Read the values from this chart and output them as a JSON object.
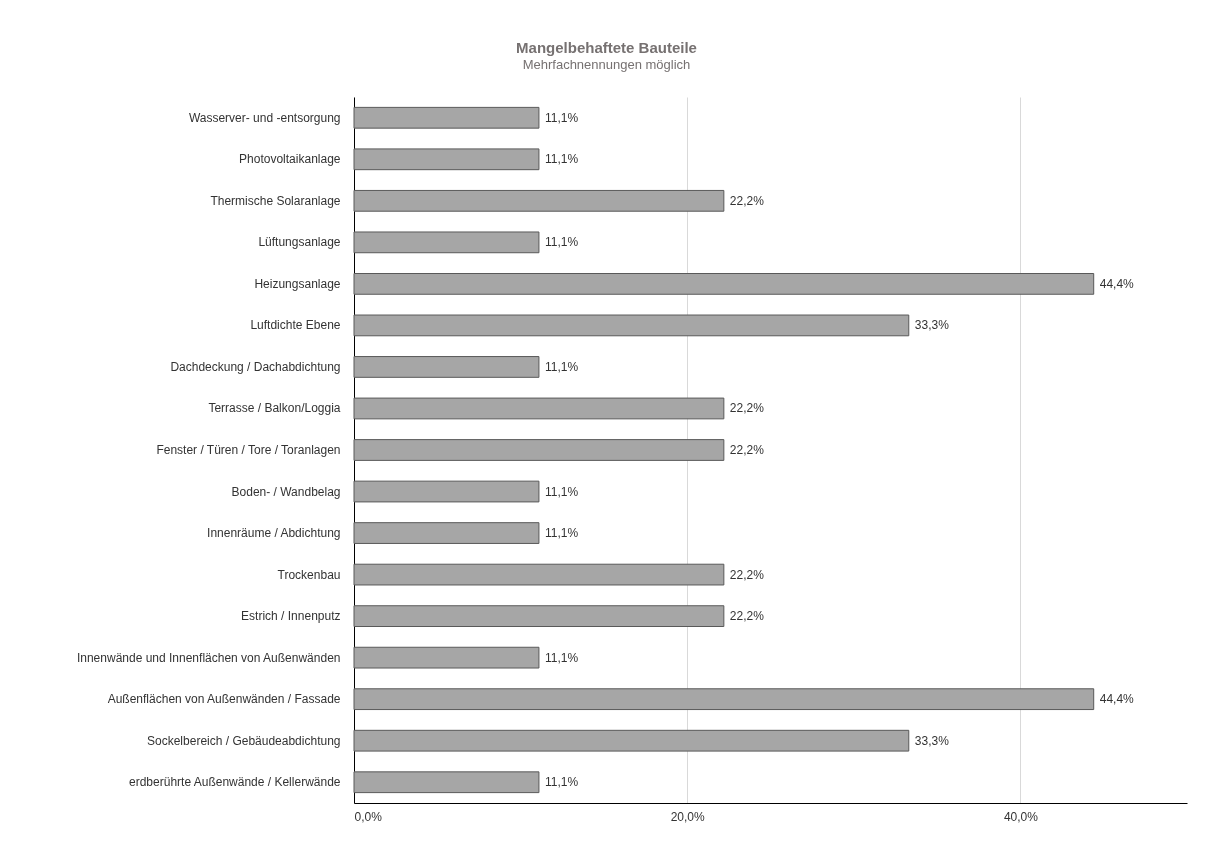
{
  "chart_data": {
    "type": "bar",
    "orientation": "horizontal",
    "title": "Mangelbehaftete Bauteile",
    "subtitle": "Mehrfachnennungen möglich",
    "categories": [
      "Wasserver- und -entsorgung",
      "Photovoltaikanlage",
      "Thermische Solaranlage",
      "Lüftungsanlage",
      "Heizungsanlage",
      "Luftdichte Ebene",
      "Dachdeckung / Dachabdichtung",
      "Terrasse / Balkon/Loggia",
      "Fenster / Türen / Tore / Toranlagen",
      "Boden- / Wandbelag",
      "Innenräume / Abdichtung",
      "Trockenbau",
      "Estrich / Innenputz",
      "Innenwände und Innenflächen von Außenwänden",
      "Außenflächen von Außenwänden / Fassade",
      "Sockelbereich / Gebäudeabdichtung",
      "erdberührte Außenwände / Kellerwände"
    ],
    "values": [
      11.1,
      11.1,
      22.2,
      11.1,
      44.4,
      33.3,
      11.1,
      22.2,
      22.2,
      11.1,
      11.1,
      22.2,
      22.2,
      11.1,
      44.4,
      33.3,
      11.1
    ],
    "value_labels": [
      "11,1%",
      "11,1%",
      "22,2%",
      "11,1%",
      "44,4%",
      "33,3%",
      "11,1%",
      "22,2%",
      "22,2%",
      "11,1%",
      "11,1%",
      "22,2%",
      "22,2%",
      "11,1%",
      "44,4%",
      "33,3%",
      "11,1%"
    ],
    "color": "#a6a6a6",
    "xlim": [
      0,
      50
    ],
    "xticks": [
      {
        "value": 0,
        "label": "0,0%"
      },
      {
        "value": 20,
        "label": "20,0%"
      },
      {
        "value": 40,
        "label": "40,0%"
      }
    ],
    "grid": "x"
  }
}
